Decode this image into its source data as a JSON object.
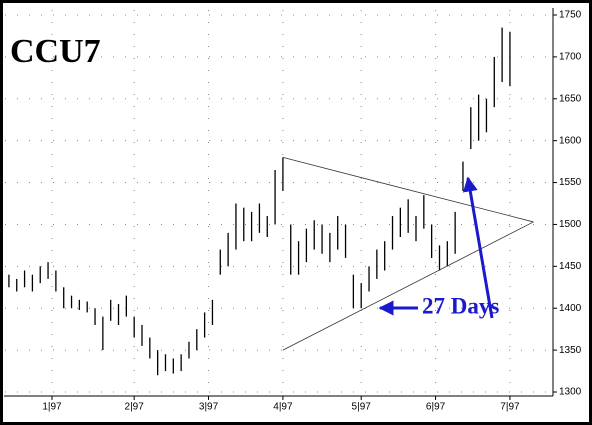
{
  "chart_data": {
    "type": "hlbar",
    "title": "CCU7",
    "annotation": "27 Days",
    "color": "#000000",
    "annotation_color": "#1a1acc",
    "grid": true,
    "xlim": [
      0,
      140
    ],
    "ylim": [
      1300,
      1750
    ],
    "yticks": [
      1300,
      1350,
      1400,
      1450,
      1500,
      1550,
      1600,
      1650,
      1700,
      1750
    ],
    "xticks": [
      {
        "value": 12,
        "label": "1|97"
      },
      {
        "value": 33,
        "label": "2|97"
      },
      {
        "value": 52,
        "label": "3|97"
      },
      {
        "value": 71,
        "label": "4|97"
      },
      {
        "value": 91,
        "label": "5|97"
      },
      {
        "value": 110,
        "label": "6|97"
      },
      {
        "value": 129,
        "label": "7|97"
      }
    ],
    "x": [
      1,
      3,
      5,
      7,
      9,
      11,
      13,
      15,
      17,
      19,
      21,
      23,
      25,
      27,
      29,
      31,
      33,
      35,
      37,
      39,
      41,
      43,
      45,
      47,
      49,
      51,
      53,
      55,
      57,
      59,
      61,
      63,
      65,
      67,
      69,
      71,
      73,
      75,
      77,
      79,
      81,
      83,
      85,
      87,
      89,
      91,
      93,
      95,
      97,
      99,
      101,
      103,
      105,
      107,
      109,
      111,
      113,
      115,
      117,
      119,
      121,
      123,
      125,
      127,
      129
    ],
    "high": [
      1440,
      1435,
      1445,
      1440,
      1450,
      1455,
      1445,
      1425,
      1415,
      1410,
      1408,
      1400,
      1390,
      1410,
      1405,
      1415,
      1390,
      1380,
      1365,
      1350,
      1345,
      1340,
      1345,
      1360,
      1375,
      1395,
      1410,
      1470,
      1490,
      1525,
      1520,
      1515,
      1525,
      1510,
      1565,
      1580,
      1500,
      1480,
      1495,
      1505,
      1500,
      1490,
      1510,
      1500,
      1440,
      1430,
      1450,
      1470,
      1480,
      1510,
      1520,
      1530,
      1510,
      1535,
      1500,
      1475,
      1480,
      1515,
      1575,
      1640,
      1655,
      1650,
      1700,
      1735,
      1730
    ],
    "low": [
      1425,
      1420,
      1425,
      1420,
      1430,
      1435,
      1420,
      1400,
      1400,
      1398,
      1395,
      1380,
      1350,
      1385,
      1380,
      1390,
      1365,
      1355,
      1340,
      1320,
      1325,
      1322,
      1325,
      1340,
      1350,
      1365,
      1380,
      1440,
      1450,
      1470,
      1480,
      1480,
      1490,
      1485,
      1500,
      1540,
      1440,
      1440,
      1455,
      1470,
      1465,
      1455,
      1470,
      1460,
      1400,
      1400,
      1420,
      1435,
      1445,
      1470,
      1485,
      1490,
      1480,
      1495,
      1460,
      1445,
      1450,
      1465,
      1540,
      1590,
      1600,
      1610,
      1640,
      1670,
      1665
    ],
    "trendlines": [
      {
        "x": [
          71,
          135
        ],
        "y": [
          1580,
          1503
        ]
      },
      {
        "x": [
          71,
          135
        ],
        "y": [
          1350,
          1503
        ]
      }
    ]
  }
}
